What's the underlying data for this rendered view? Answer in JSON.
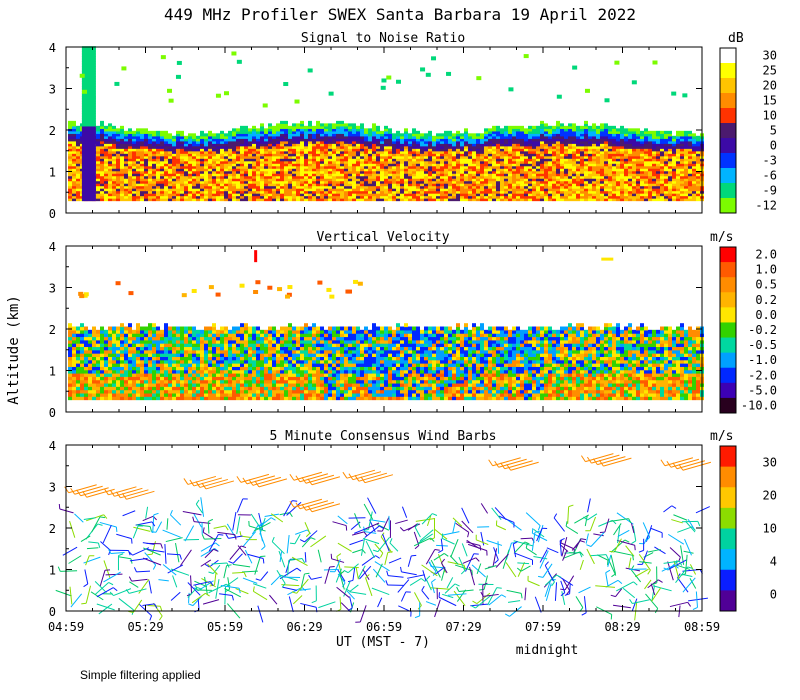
{
  "title": "449 MHz Profiler SWEX Santa Barbara 19 April 2022",
  "ylabel": "Altitude (km)",
  "xlabel": "UT  (MST - 7)",
  "midnight_label": "midnight",
  "footnote": "Simple filtering applied",
  "x_ticks": [
    "04:59",
    "05:29",
    "05:59",
    "06:29",
    "06:59",
    "07:29",
    "07:59",
    "08:29",
    "08:59"
  ],
  "y_ticks": [
    "0",
    "1",
    "2",
    "3",
    "4"
  ],
  "chart_data": [
    {
      "type": "heatmap",
      "title": "Signal to Noise Ratio",
      "colorbar_unit": "dB",
      "colorbar_labels": [
        "30",
        "25",
        "20",
        "15",
        "10",
        "5",
        "0",
        "-3",
        "-6",
        "-9",
        "-12"
      ],
      "colorbar_colors": [
        "#ffffff",
        "#ffff00",
        "#ffc400",
        "#ff8c00",
        "#ff3300",
        "#4b1a6e",
        "#3c0aa6",
        "#0033ff",
        "#00b4ff",
        "#00d87a",
        "#7cfc00"
      ],
      "xlim": [
        "04:59",
        "08:59"
      ],
      "ylim": [
        0,
        4
      ],
      "notes": "Data layer ~0.3-2.1 km, strongest SNR in lowest 1.5 km; sparse echoes near 2.8-3.8 km"
    },
    {
      "type": "heatmap",
      "title": "Vertical Velocity",
      "colorbar_unit": "m/s",
      "colorbar_labels": [
        "2.0",
        "1.0",
        "0.5",
        "0.2",
        "0.0",
        "-0.2",
        "-0.5",
        "-1.0",
        "-2.0",
        "-5.0",
        "-10.0"
      ],
      "colorbar_colors": [
        "#ff0000",
        "#ff5a00",
        "#ff8c00",
        "#ffb400",
        "#ffe600",
        "#32d200",
        "#00d8a0",
        "#00a0ff",
        "#0028ff",
        "#3c00b4",
        "#28001e"
      ],
      "xlim": [
        "04:59",
        "08:59"
      ],
      "ylim": [
        0,
        4
      ]
    },
    {
      "type": "scatter",
      "title": "5 Minute Consensus Wind Barbs",
      "colorbar_unit": "m/s",
      "colorbar_labels": [
        "30",
        "20",
        "10",
        "4",
        "0"
      ],
      "colorbar_colors": [
        "#ff1a00",
        "#ff8c00",
        "#ffc800",
        "#8cdc00",
        "#00d2a0",
        "#00b4ff",
        "#0a1eff",
        "#500096"
      ],
      "xlim": [
        "04:59",
        "08:59"
      ],
      "ylim": [
        0,
        4
      ],
      "upper_barbs": [
        {
          "t": "05:00",
          "alt": 2.85,
          "speed": 20
        },
        {
          "t": "05:15",
          "alt": 2.8,
          "speed": 20
        },
        {
          "t": "05:45",
          "alt": 3.05,
          "speed": 20
        },
        {
          "t": "06:05",
          "alt": 3.1,
          "speed": 20
        },
        {
          "t": "06:25",
          "alt": 3.15,
          "speed": 20
        },
        {
          "t": "06:45",
          "alt": 3.2,
          "speed": 20
        },
        {
          "t": "06:25",
          "alt": 2.5,
          "speed": 20
        },
        {
          "t": "07:40",
          "alt": 3.5,
          "speed": 20
        },
        {
          "t": "08:15",
          "alt": 3.6,
          "speed": 20
        },
        {
          "t": "08:45",
          "alt": 3.5,
          "speed": 20
        }
      ]
    }
  ]
}
